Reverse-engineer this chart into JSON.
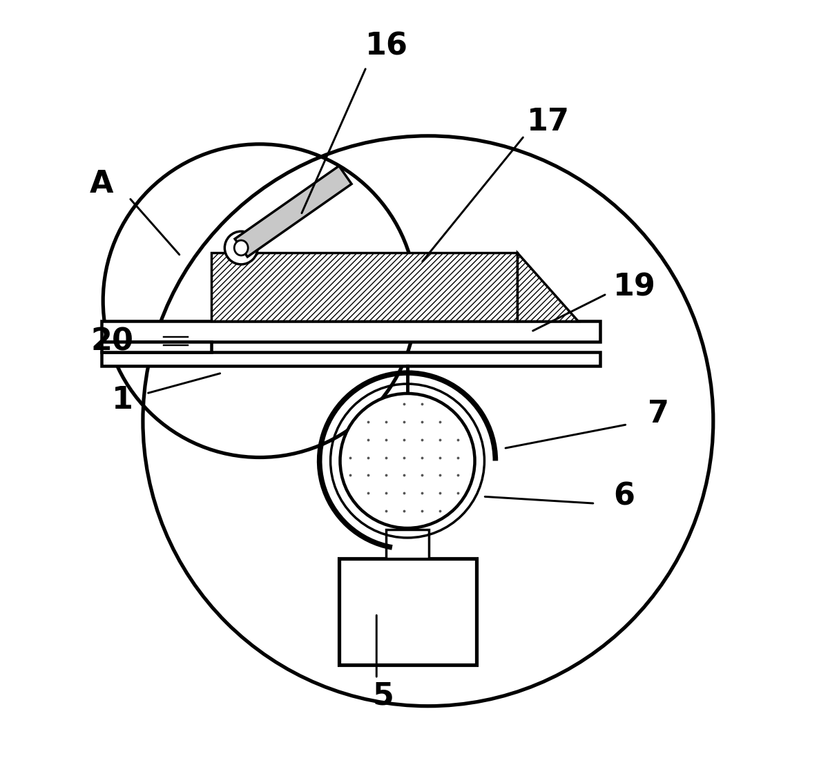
{
  "bg_color": "#ffffff",
  "lc": "#000000",
  "lw": 2.5,
  "fig_w": 11.86,
  "fig_h": 11.24,
  "label_fs": 32
}
